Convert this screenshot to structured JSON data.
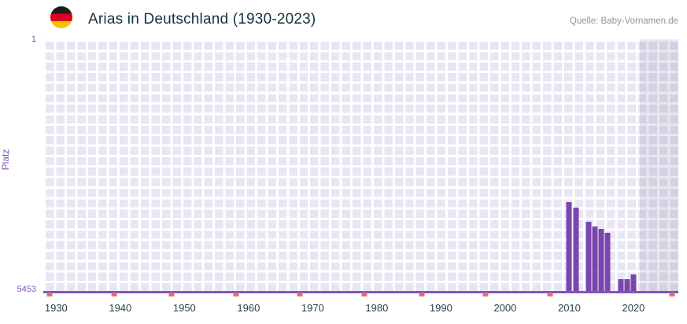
{
  "header": {
    "source": "Quelle: Baby-Vornamen.de"
  },
  "chart_data": {
    "type": "bar",
    "title": "Arias in Deutschland (1930-2023)",
    "xlabel": "",
    "ylabel": "Platz",
    "grid": true,
    "legend": "none",
    "y_axis": {
      "label_top": "1",
      "label_bottom": "5453",
      "min": 1,
      "max": 5453,
      "inverted": true
    },
    "x_axis": {
      "range": [
        1928,
        2027
      ],
      "ticks": [
        {
          "year": 1930,
          "label": "1930"
        },
        {
          "year": 1940,
          "label": "1940"
        },
        {
          "year": 1950,
          "label": "1950"
        },
        {
          "year": 1960,
          "label": "1960"
        },
        {
          "year": 1970,
          "label": "1970"
        },
        {
          "year": 1980,
          "label": "1980"
        },
        {
          "year": 1990,
          "label": "1990"
        },
        {
          "year": 2000,
          "label": "2000"
        },
        {
          "year": 2010,
          "label": "2010"
        },
        {
          "year": 2020,
          "label": "2020"
        }
      ]
    },
    "points": [
      {
        "year": 2010,
        "rank": 3520
      },
      {
        "year": 2011,
        "rank": 3650
      },
      {
        "year": 2013,
        "rank": 3960
      },
      {
        "year": 2014,
        "rank": 4060
      },
      {
        "year": 2015,
        "rank": 4110
      },
      {
        "year": 2016,
        "rank": 4200
      },
      {
        "year": 2018,
        "rank": 5190
      },
      {
        "year": 2019,
        "rank": 5200
      },
      {
        "year": 2020,
        "rank": 5100
      }
    ],
    "no_data_marker_years": [
      1929,
      1939,
      1948,
      1958,
      1968,
      1978,
      1987,
      1997,
      2007,
      2026
    ],
    "highlight_band": {
      "start_year": 2021,
      "end_year": 2027
    },
    "colors": {
      "bar": "#7a45ad",
      "axis_line": "#7d55c0",
      "plot_background": "#e9e6f3",
      "grid_line": "#ffffff",
      "highlight_band": "rgba(104,92,140,0.15)",
      "no_data_marker": "#e0716e",
      "y_tick_text": "#7d55bb",
      "x_tick_text": "#2a4149",
      "title_text": "#14323c",
      "source_text": "#8f9499"
    }
  }
}
